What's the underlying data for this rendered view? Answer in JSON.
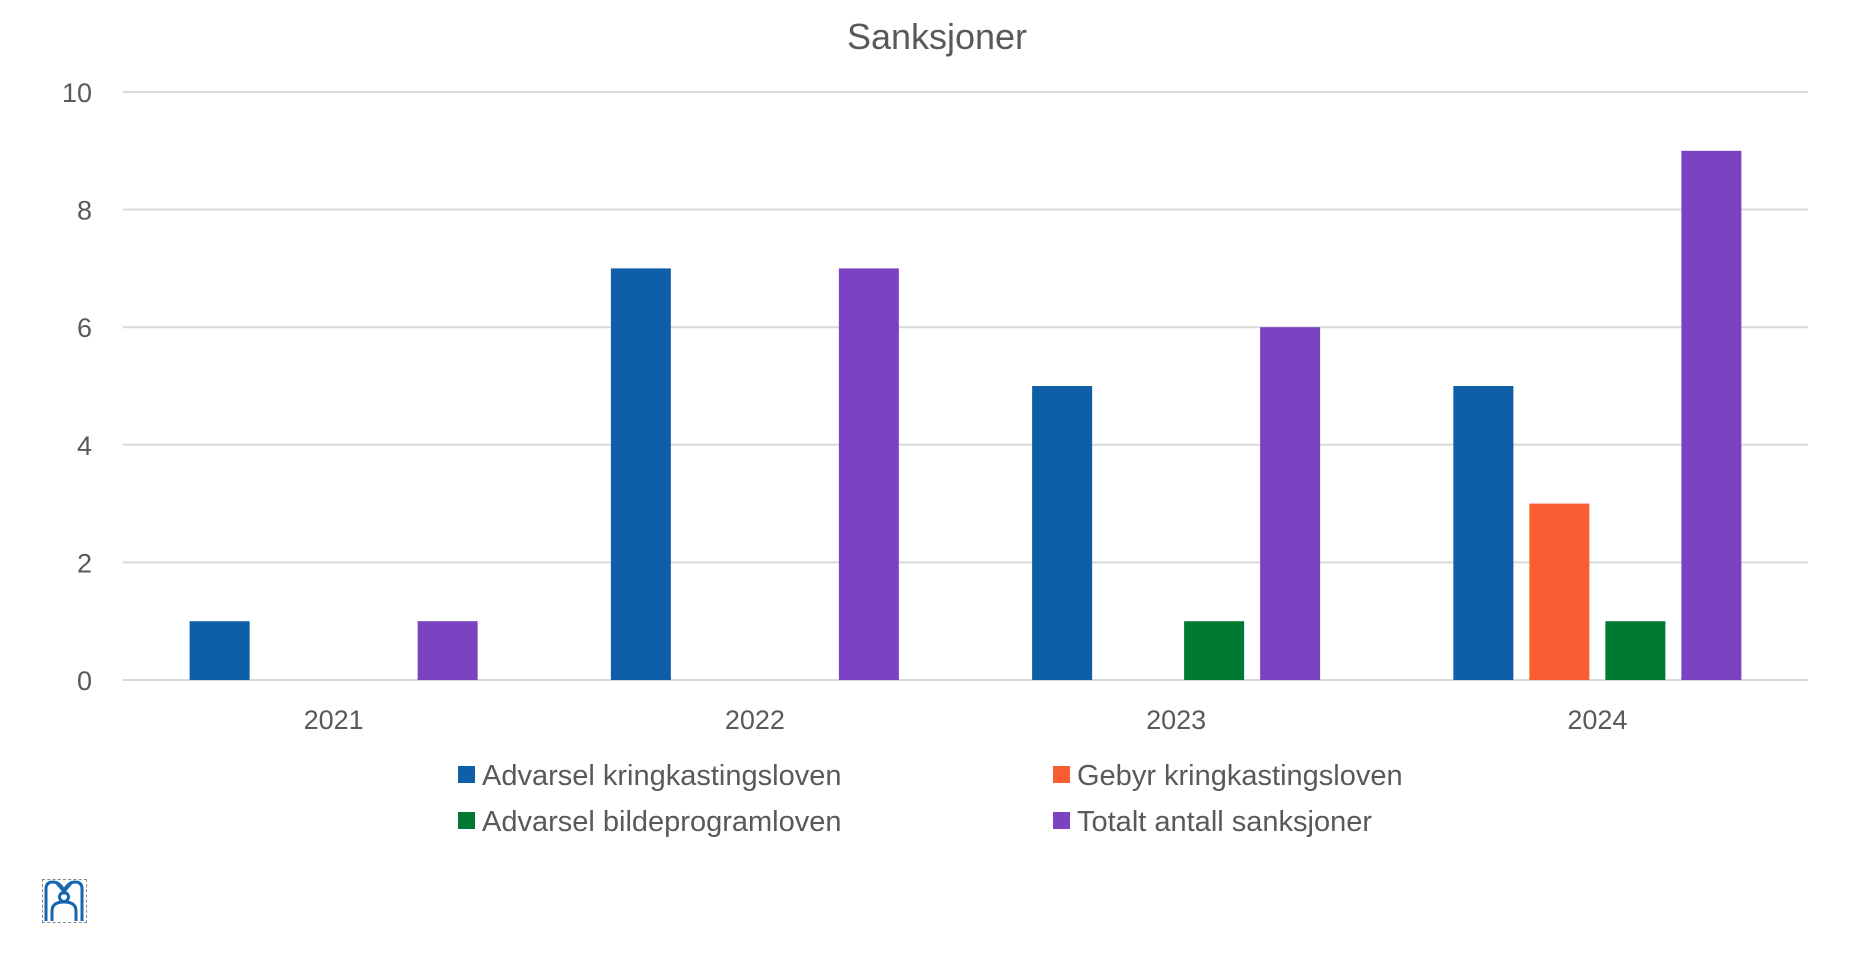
{
  "chart_data": {
    "type": "bar",
    "title": "Sanksjoner",
    "xlabel": "",
    "ylabel": "",
    "categories": [
      "2021",
      "2022",
      "2023",
      "2024"
    ],
    "ylim": [
      0,
      10
    ],
    "yticks": [
      "0",
      "2",
      "4",
      "6",
      "8",
      "10"
    ],
    "grid": true,
    "legend_position": "bottom",
    "series": [
      {
        "name": "Advarsel kringkastingsloven",
        "color": "#0e5ea8",
        "values": [
          1,
          7,
          5,
          5
        ]
      },
      {
        "name": "Gebyr kringkastingsloven",
        "color": "#f95d31",
        "values": [
          0,
          0,
          0,
          3
        ]
      },
      {
        "name": "Advarsel bildeprogramloven",
        "color": "#007a33",
        "values": [
          0,
          0,
          1,
          1
        ]
      },
      {
        "name": "Totalt antall sanksjoner",
        "color": "#7b43c1",
        "values": [
          1,
          7,
          6,
          9
        ]
      }
    ]
  },
  "logo": {
    "icon": "logo-icon",
    "color": "#1565b0"
  }
}
